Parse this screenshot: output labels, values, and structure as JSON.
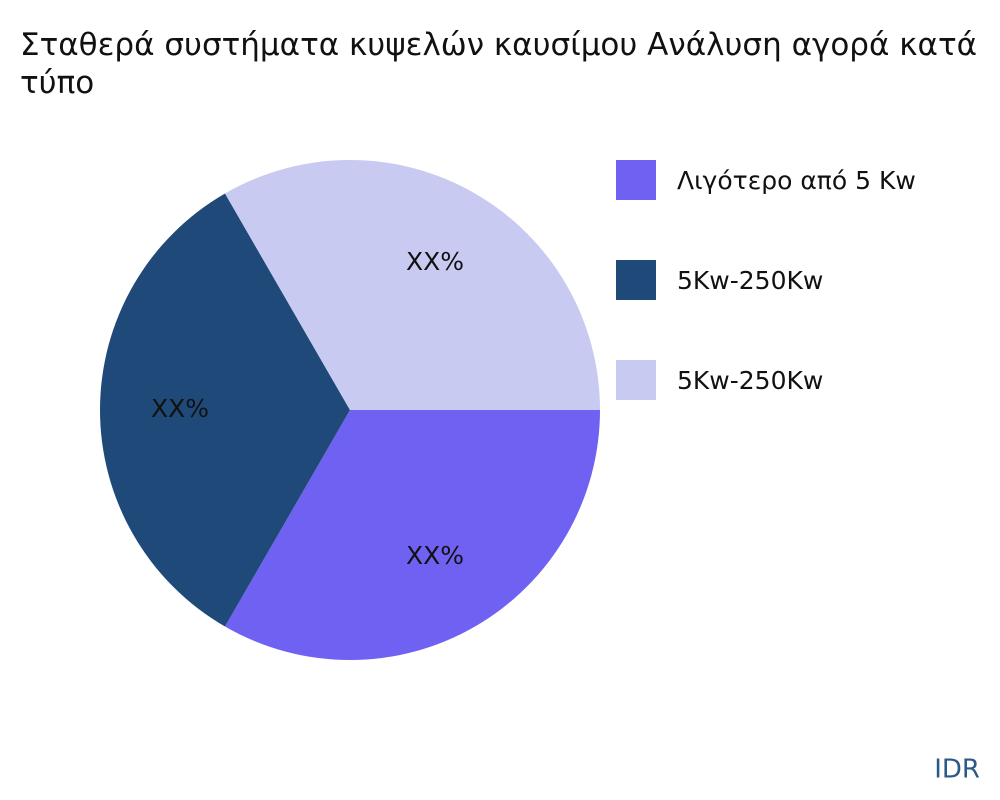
{
  "chart_data": {
    "type": "pie",
    "title": "Σταθερά συστήματα κυψελών καυσίμου Ανάλυση αγορά κατά τύπο",
    "categories": [
      "Λιγότερο από 5 Kw",
      "5Kw-250Kw",
      "5Kw-250Kw"
    ],
    "values": [
      33.3,
      33.3,
      33.3
    ],
    "value_labels": [
      "XX%",
      "XX%",
      "XX%"
    ],
    "colors": [
      "#6f61f2",
      "#1f4978",
      "#c9caf1"
    ],
    "legend": "right",
    "watermark": "IDR"
  }
}
